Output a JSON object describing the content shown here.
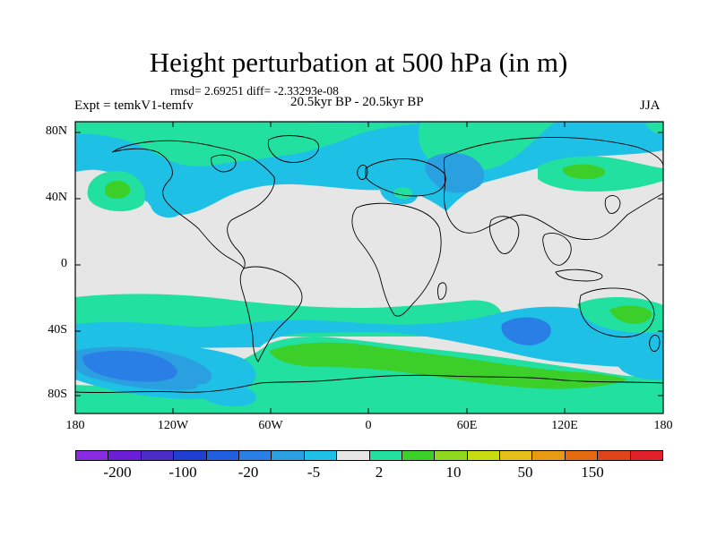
{
  "title": "Height perturbation at 500 hPa (in m)",
  "stats": "rmsd= 2.69251 diff= -2.33293e-08",
  "experiment": "Expt = temkV1-temfv",
  "period": "20.5kyr BP - 20.5kyr BP",
  "season": "JJA",
  "lat_labels": [
    "80N",
    "40N",
    "0",
    "40S",
    "80S"
  ],
  "lon_labels": [
    "180",
    "120W",
    "60W",
    "0",
    "60E",
    "120E",
    "180"
  ],
  "colorbar": {
    "colors": [
      "#8a2be2",
      "#6a1fd6",
      "#4b2cc7",
      "#1f3fd1",
      "#1f5fe0",
      "#2a7fe6",
      "#2aa0e0",
      "#1ec0e6",
      "#e6e6e6",
      "#22e0a0",
      "#3ccf2a",
      "#8fd81e",
      "#c8dc12",
      "#e6c018",
      "#e89a12",
      "#e66a10",
      "#e0441a",
      "#e0202a"
    ],
    "labels": [
      "-200",
      "-100",
      "-20",
      "-5",
      "2",
      "10",
      "50",
      "150"
    ]
  },
  "map_colors": {
    "background": "#e6e6e6",
    "cyan": "#1ec0e6",
    "blue": "#2aa0e0",
    "deep_blue": "#2a7fe6",
    "teal": "#22e0a0",
    "green": "#3ccf2a",
    "coast": "#000000"
  }
}
